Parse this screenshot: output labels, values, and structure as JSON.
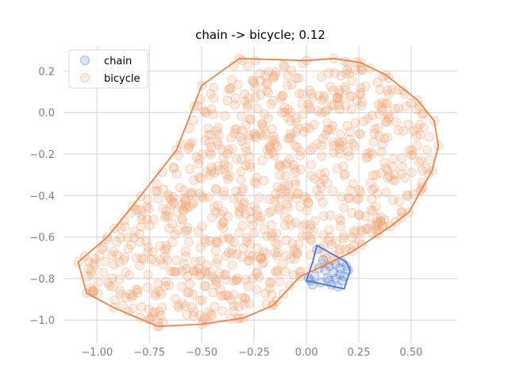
{
  "chart_data": {
    "type": "scatter",
    "title": "chain -> bicycle; 0.12",
    "xlabel": "",
    "ylabel": "",
    "xlim": [
      -1.16,
      0.72
    ],
    "ylim": [
      -1.11,
      0.32
    ],
    "x_ticks": [
      -1.0,
      -0.75,
      -0.5,
      -0.25,
      0.0,
      0.25,
      0.5
    ],
    "x_tick_labels": [
      "−1.00",
      "−0.75",
      "−0.50",
      "−0.25",
      "0.00",
      "0.25",
      "0.50"
    ],
    "y_ticks": [
      0.2,
      0.0,
      -0.2,
      -0.4,
      -0.6,
      -0.8,
      -1.0
    ],
    "y_tick_labels": [
      "0.2",
      "0.0",
      "−0.2",
      "−0.4",
      "−0.6",
      "−0.8",
      "−1.0"
    ],
    "grid": true,
    "legend_position": "top-left",
    "series": [
      {
        "name": "chain",
        "color": "#4a74d4",
        "marker_alpha": 0.2,
        "hull": [
          [
            0.05,
            -0.64
          ],
          [
            0.19,
            -0.72
          ],
          [
            0.21,
            -0.76
          ],
          [
            0.18,
            -0.85
          ],
          [
            0.0,
            -0.81
          ],
          [
            0.03,
            -0.72
          ]
        ],
        "points": [
          [
            0.05,
            -0.66
          ],
          [
            0.08,
            -0.71
          ],
          [
            0.11,
            -0.74
          ],
          [
            0.14,
            -0.73
          ],
          [
            0.17,
            -0.72
          ],
          [
            0.19,
            -0.74
          ],
          [
            0.2,
            -0.76
          ],
          [
            0.16,
            -0.78
          ],
          [
            0.13,
            -0.77
          ],
          [
            0.1,
            -0.8
          ],
          [
            0.07,
            -0.82
          ],
          [
            0.04,
            -0.79
          ],
          [
            0.02,
            -0.81
          ],
          [
            0.01,
            -0.8
          ],
          [
            0.12,
            -0.83
          ],
          [
            0.15,
            -0.84
          ],
          [
            0.17,
            -0.81
          ],
          [
            0.18,
            -0.79
          ],
          [
            0.06,
            -0.75
          ],
          [
            0.03,
            -0.83
          ],
          [
            0.09,
            -0.76
          ],
          [
            0.14,
            -0.8
          ],
          [
            0.16,
            -0.75
          ],
          [
            0.11,
            -0.81
          ]
        ]
      },
      {
        "name": "bicycle",
        "color": "#f0a070",
        "hull_color": "#e8864a",
        "marker_alpha": 0.2,
        "count": 900,
        "seed": 7,
        "hull": [
          [
            -0.32,
            0.26
          ],
          [
            0.0,
            0.25
          ],
          [
            0.13,
            0.26
          ],
          [
            0.26,
            0.24
          ],
          [
            0.38,
            0.18
          ],
          [
            0.53,
            0.06
          ],
          [
            0.61,
            -0.04
          ],
          [
            0.63,
            -0.16
          ],
          [
            0.6,
            -0.28
          ],
          [
            0.55,
            -0.37
          ],
          [
            0.49,
            -0.48
          ],
          [
            0.4,
            -0.55
          ],
          [
            0.22,
            -0.67
          ],
          [
            0.1,
            -0.73
          ],
          [
            -0.03,
            -0.79
          ],
          [
            -0.16,
            -0.93
          ],
          [
            -0.3,
            -0.99
          ],
          [
            -0.5,
            -1.02
          ],
          [
            -0.71,
            -1.03
          ],
          [
            -0.92,
            -0.94
          ],
          [
            -1.05,
            -0.87
          ],
          [
            -1.09,
            -0.72
          ],
          [
            -0.95,
            -0.6
          ],
          [
            -0.83,
            -0.45
          ],
          [
            -0.62,
            -0.18
          ],
          [
            -0.5,
            0.13
          ]
        ]
      }
    ]
  }
}
